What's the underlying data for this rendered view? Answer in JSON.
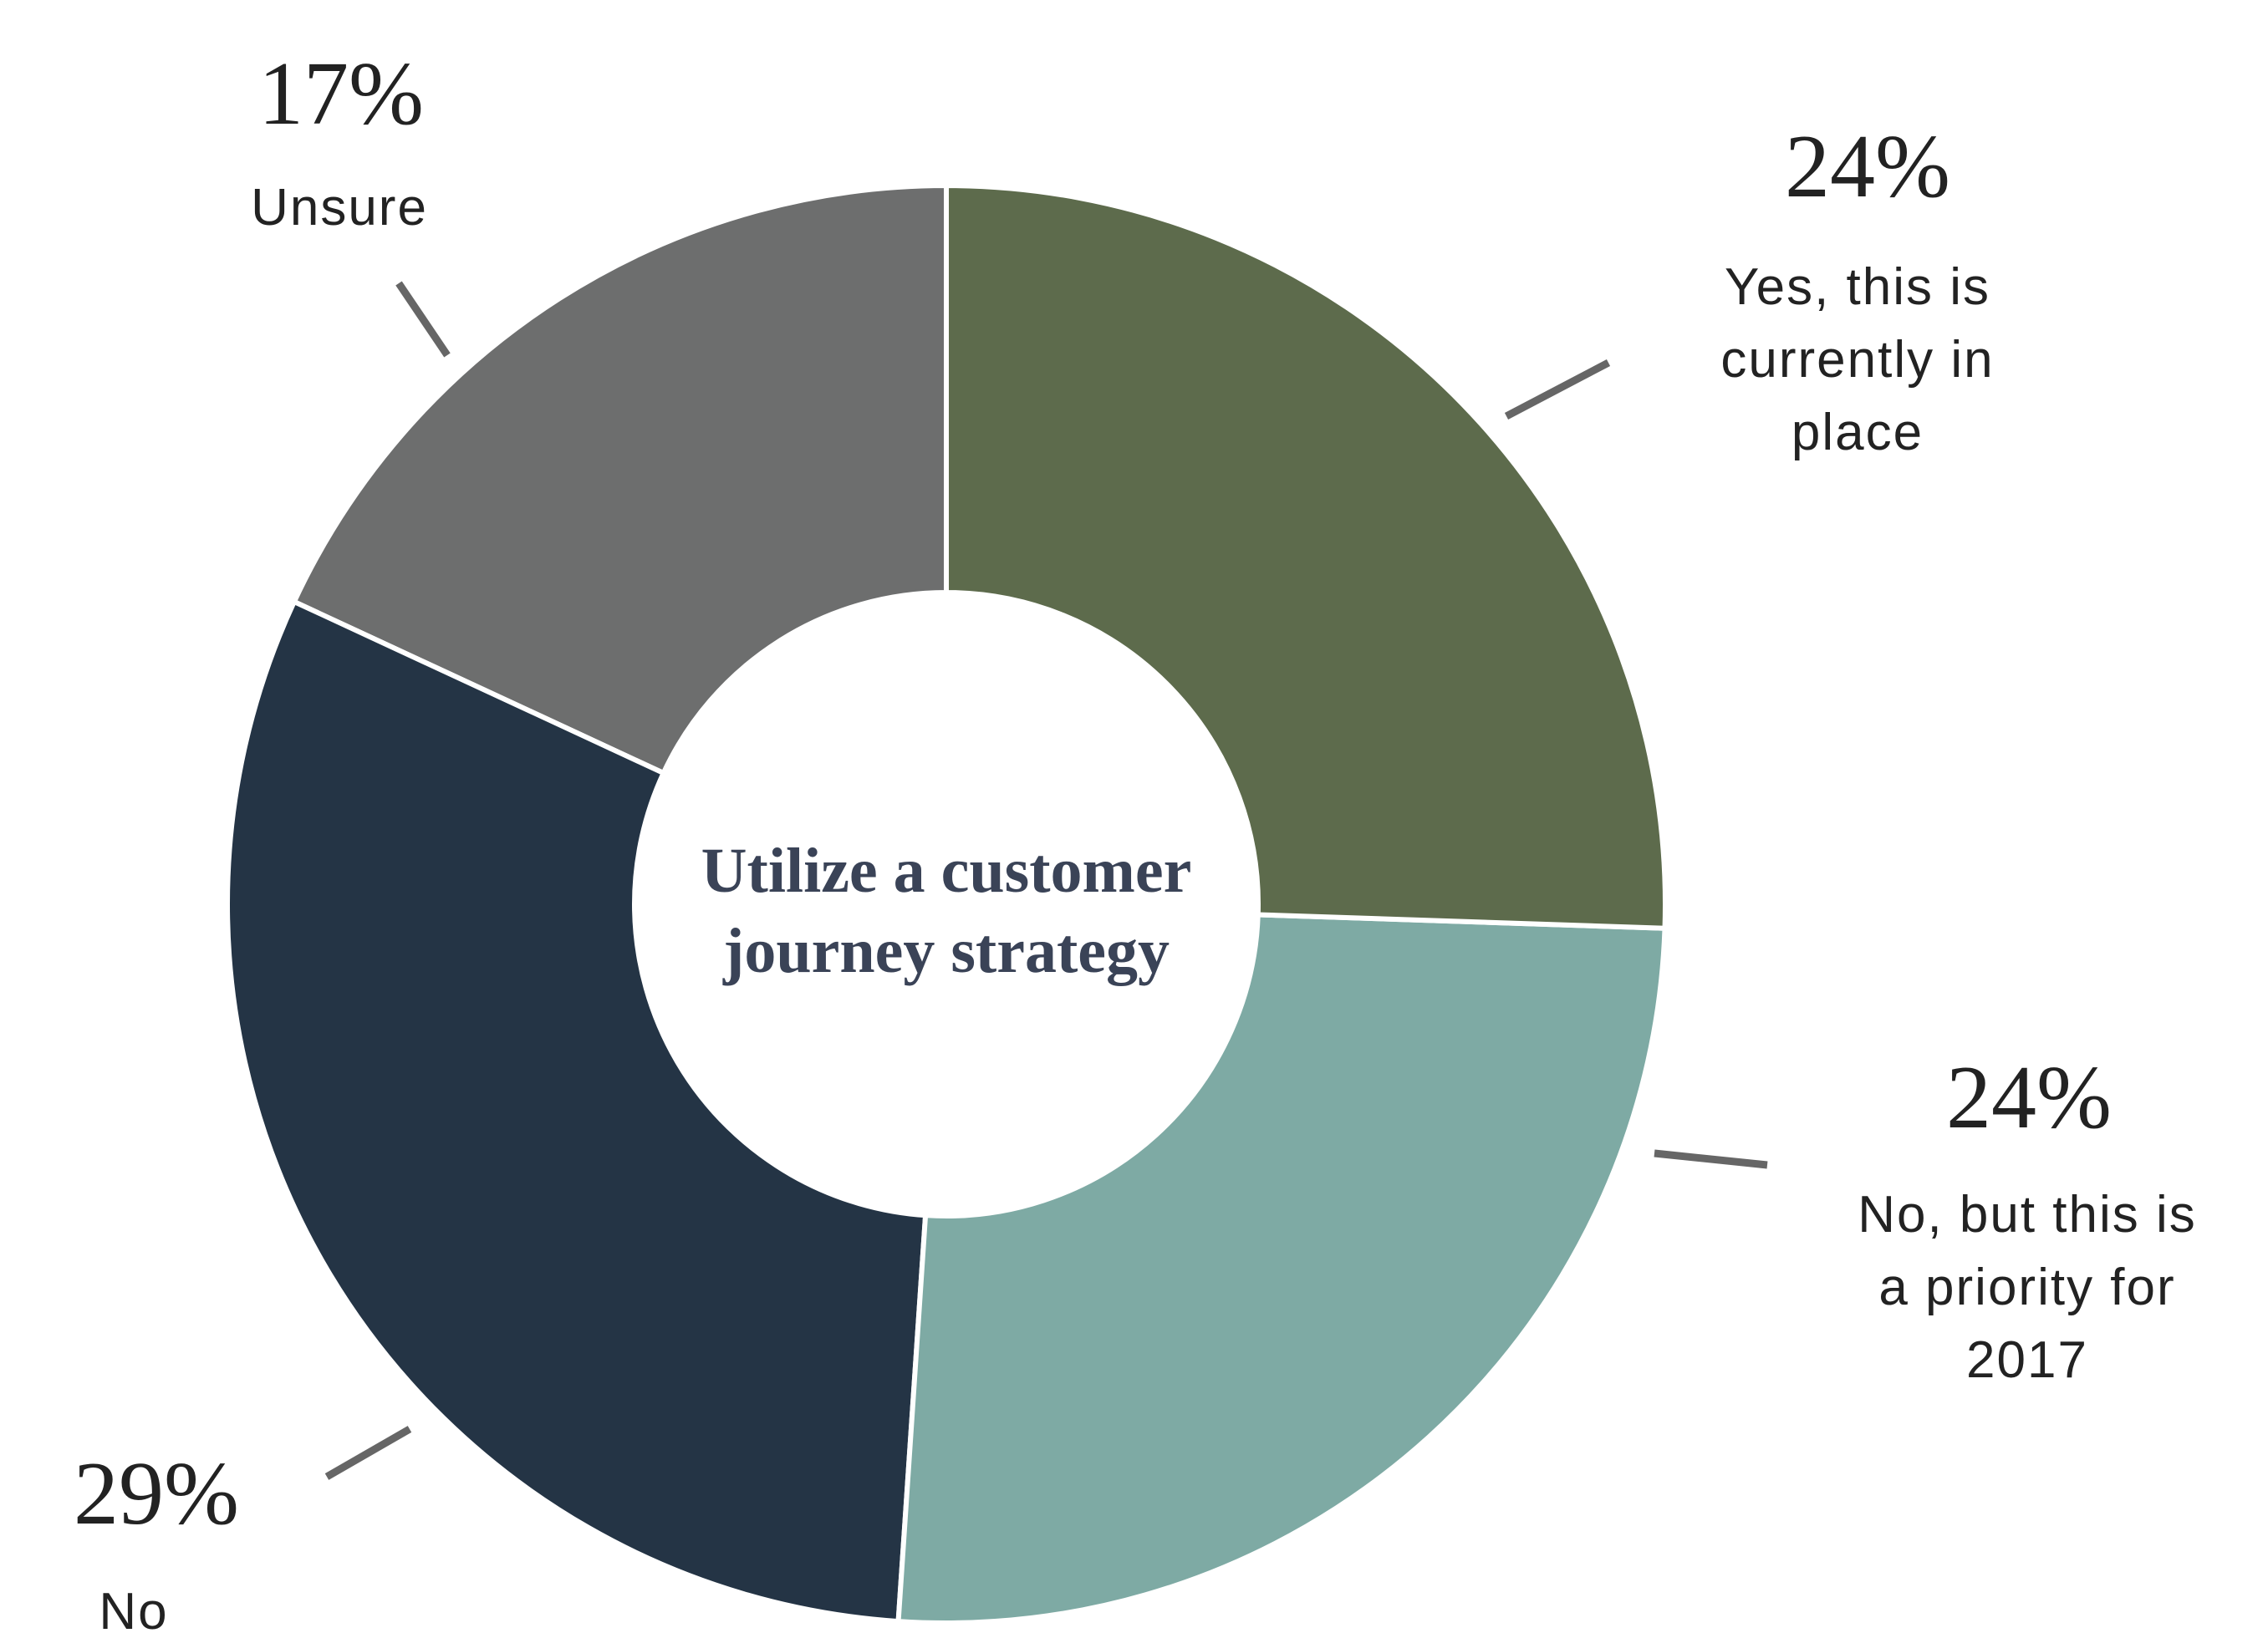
{
  "chart_data": {
    "type": "donut",
    "title": "Utilize a customer journey strategy",
    "categories": [
      "Yes, this is currently in place",
      "No, but this is a priority for 2017",
      "No",
      "Unsure"
    ],
    "values": [
      24,
      24,
      29,
      17
    ],
    "value_labels": [
      "24%",
      "24%",
      "29%",
      "17%"
    ],
    "colors": [
      "#5d6b4c",
      "#7eaaa4",
      "#243445",
      "#6d6e6e"
    ]
  }
}
